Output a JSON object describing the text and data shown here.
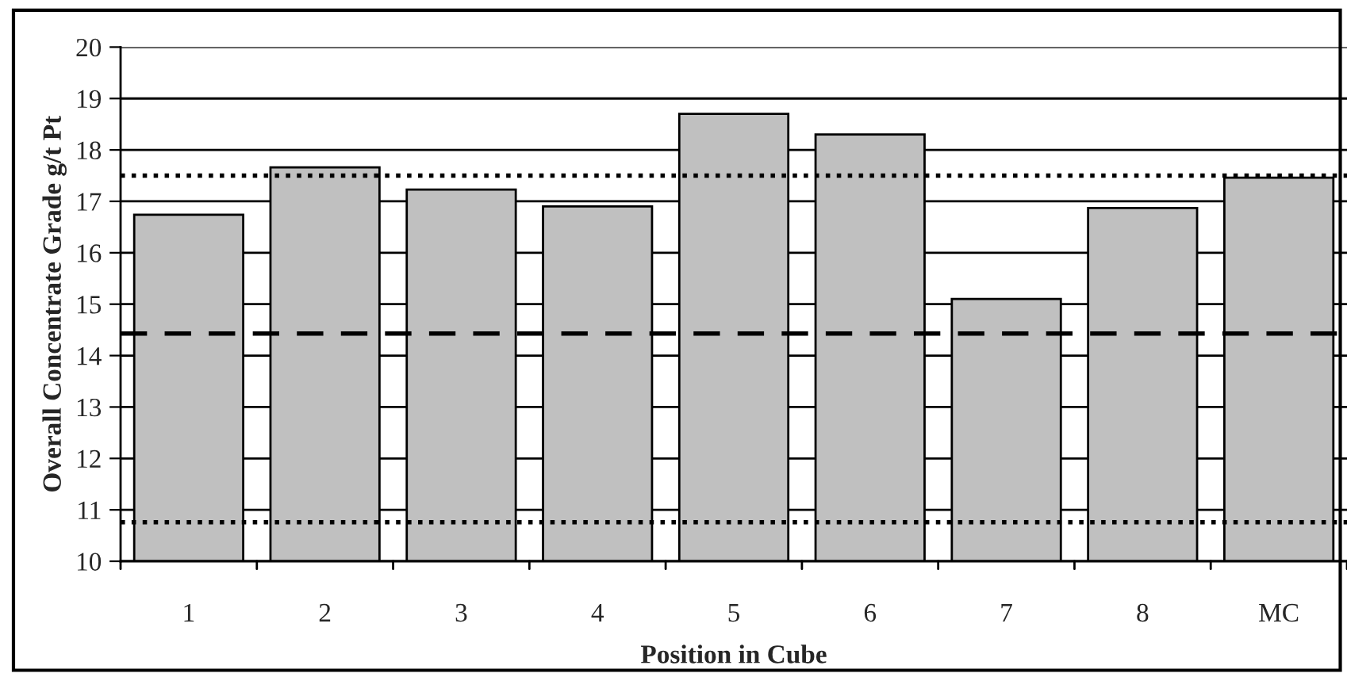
{
  "chart_data": {
    "type": "bar",
    "xlabel": "Position in Cube",
    "ylabel": "Overall Concentrate Grade g/t Pt",
    "categories": [
      "1",
      "2",
      "3",
      "4",
      "5",
      "6",
      "7",
      "8",
      "MC"
    ],
    "values": [
      16.74,
      17.66,
      17.23,
      16.9,
      18.7,
      18.3,
      15.1,
      16.87,
      17.46
    ],
    "color": "#c0c0c0",
    "ylim": [
      10,
      20
    ],
    "yticks": [
      10,
      11,
      12,
      13,
      14,
      15,
      16,
      17,
      18,
      19,
      20
    ],
    "grid": "y",
    "ref_lines": [
      {
        "axis": "y",
        "value": 17.5,
        "line_style": "dotted",
        "color": "#000000"
      },
      {
        "axis": "y",
        "value": 14.43,
        "line_style": "dashed",
        "color": "#000000"
      },
      {
        "axis": "y",
        "value": 10.76,
        "line_style": "dotted",
        "color": "#000000"
      }
    ]
  }
}
